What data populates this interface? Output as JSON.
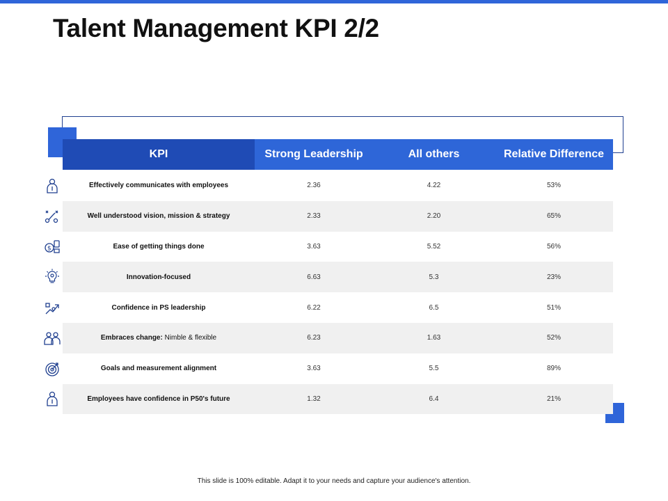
{
  "title": "Talent Management KPI 2/2",
  "colors": {
    "accent": "#2f65d9",
    "header_dark": "#1f4bb5",
    "row_shade": "#f0f0f0"
  },
  "table": {
    "headers": {
      "kpi": "KPI",
      "strong": "Strong Leadership",
      "others": "All others",
      "relative": "Relative Difference"
    },
    "rows": [
      {
        "kpi": "Effectively communicates with employees",
        "kpi_extra": "",
        "strong": "2.36",
        "others": "4.22",
        "relative": "53%",
        "icon": "employee-icon"
      },
      {
        "kpi": "Well understood vision, mission & strategy",
        "kpi_extra": "",
        "strong": "2.33",
        "others": "2.20",
        "relative": "65%",
        "icon": "strategy-icon"
      },
      {
        "kpi": "Ease of getting things done",
        "kpi_extra": "",
        "strong": "3.63",
        "others": "5.52",
        "relative": "56%",
        "icon": "money-icon"
      },
      {
        "kpi": "Innovation-focused",
        "kpi_extra": "",
        "strong": "6.63",
        "others": "5.3",
        "relative": "23%",
        "icon": "lightbulb-icon"
      },
      {
        "kpi": "Confidence in PS leadership",
        "kpi_extra": "",
        "strong": "6.22",
        "others": "6.5",
        "relative": "51%",
        "icon": "growth-icon"
      },
      {
        "kpi": "Embraces change:",
        "kpi_extra": "Nimble & flexible",
        "strong": "6.23",
        "others": "1.63",
        "relative": "52%",
        "icon": "team-icon"
      },
      {
        "kpi": "Goals and measurement alignment",
        "kpi_extra": "",
        "strong": "3.63",
        "others": "5.5",
        "relative": "89%",
        "icon": "target-icon"
      },
      {
        "kpi": "Employees have confidence in P50's future",
        "kpi_extra": "",
        "strong": "1.32",
        "others": "6.4",
        "relative": "21%",
        "icon": "employee-icon"
      }
    ]
  },
  "footer": "This slide is 100% editable.  Adapt it to your needs and capture your audience's attention."
}
